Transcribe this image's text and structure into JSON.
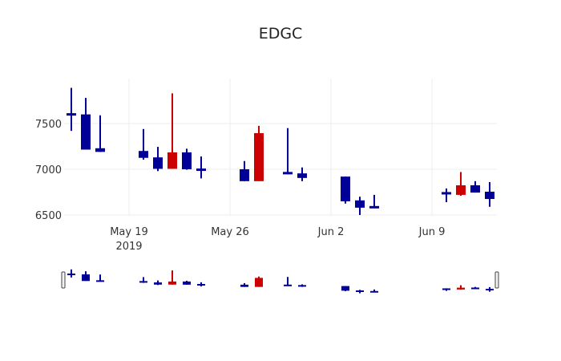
{
  "chart_data": {
    "type": "candlestick",
    "title": "EDGC",
    "xlabel": "",
    "ylabel": "",
    "ylim": [
      6500,
      7980
    ],
    "grid": true,
    "x_ticks": [
      {
        "date": "2019-05-19",
        "label": "May 19",
        "sublabel": "2019"
      },
      {
        "date": "2019-05-26",
        "label": "May 26",
        "sublabel": ""
      },
      {
        "date": "2019-06-02",
        "label": "Jun 2",
        "sublabel": ""
      },
      {
        "date": "2019-06-09",
        "label": "Jun 9",
        "sublabel": ""
      }
    ],
    "y_ticks": [
      6500,
      7000,
      7500
    ],
    "colors": {
      "increasing": "#cc0000",
      "decreasing": "#000099"
    },
    "range_slider": true,
    "candles": [
      {
        "date": "2019-05-15",
        "open": 7610,
        "high": 7890,
        "low": 7420,
        "close": 7590
      },
      {
        "date": "2019-05-16",
        "open": 7600,
        "high": 7780,
        "low": 7215,
        "close": 7215
      },
      {
        "date": "2019-05-17",
        "open": 7230,
        "high": 7590,
        "low": 7190,
        "close": 7190
      },
      {
        "date": "2019-05-20",
        "open": 7200,
        "high": 7440,
        "low": 7105,
        "close": 7125
      },
      {
        "date": "2019-05-21",
        "open": 7130,
        "high": 7245,
        "low": 6980,
        "close": 7005
      },
      {
        "date": "2019-05-22",
        "open": 7005,
        "high": 7830,
        "low": 7005,
        "close": 7185
      },
      {
        "date": "2019-05-23",
        "open": 7185,
        "high": 7225,
        "low": 6995,
        "close": 7000
      },
      {
        "date": "2019-05-24",
        "open": 7000,
        "high": 7140,
        "low": 6900,
        "close": 6990
      },
      {
        "date": "2019-05-27",
        "open": 7000,
        "high": 7090,
        "low": 6870,
        "close": 6870
      },
      {
        "date": "2019-05-28",
        "open": 6870,
        "high": 7475,
        "low": 6870,
        "close": 7395
      },
      {
        "date": "2019-05-30",
        "open": 6970,
        "high": 7450,
        "low": 6945,
        "close": 6945
      },
      {
        "date": "2019-05-31",
        "open": 6955,
        "high": 7020,
        "low": 6870,
        "close": 6905
      },
      {
        "date": "2019-06-03",
        "open": 6920,
        "high": 6920,
        "low": 6625,
        "close": 6650
      },
      {
        "date": "2019-06-04",
        "open": 6660,
        "high": 6700,
        "low": 6500,
        "close": 6580
      },
      {
        "date": "2019-06-05",
        "open": 6590,
        "high": 6720,
        "low": 6580,
        "close": 6580
      },
      {
        "date": "2019-06-10",
        "open": 6745,
        "high": 6790,
        "low": 6640,
        "close": 6730
      },
      {
        "date": "2019-06-11",
        "open": 6720,
        "high": 6970,
        "low": 6710,
        "close": 6825
      },
      {
        "date": "2019-06-12",
        "open": 6825,
        "high": 6870,
        "low": 6745,
        "close": 6745
      },
      {
        "date": "2019-06-13",
        "open": 6755,
        "high": 6860,
        "low": 6590,
        "close": 6675
      }
    ]
  }
}
